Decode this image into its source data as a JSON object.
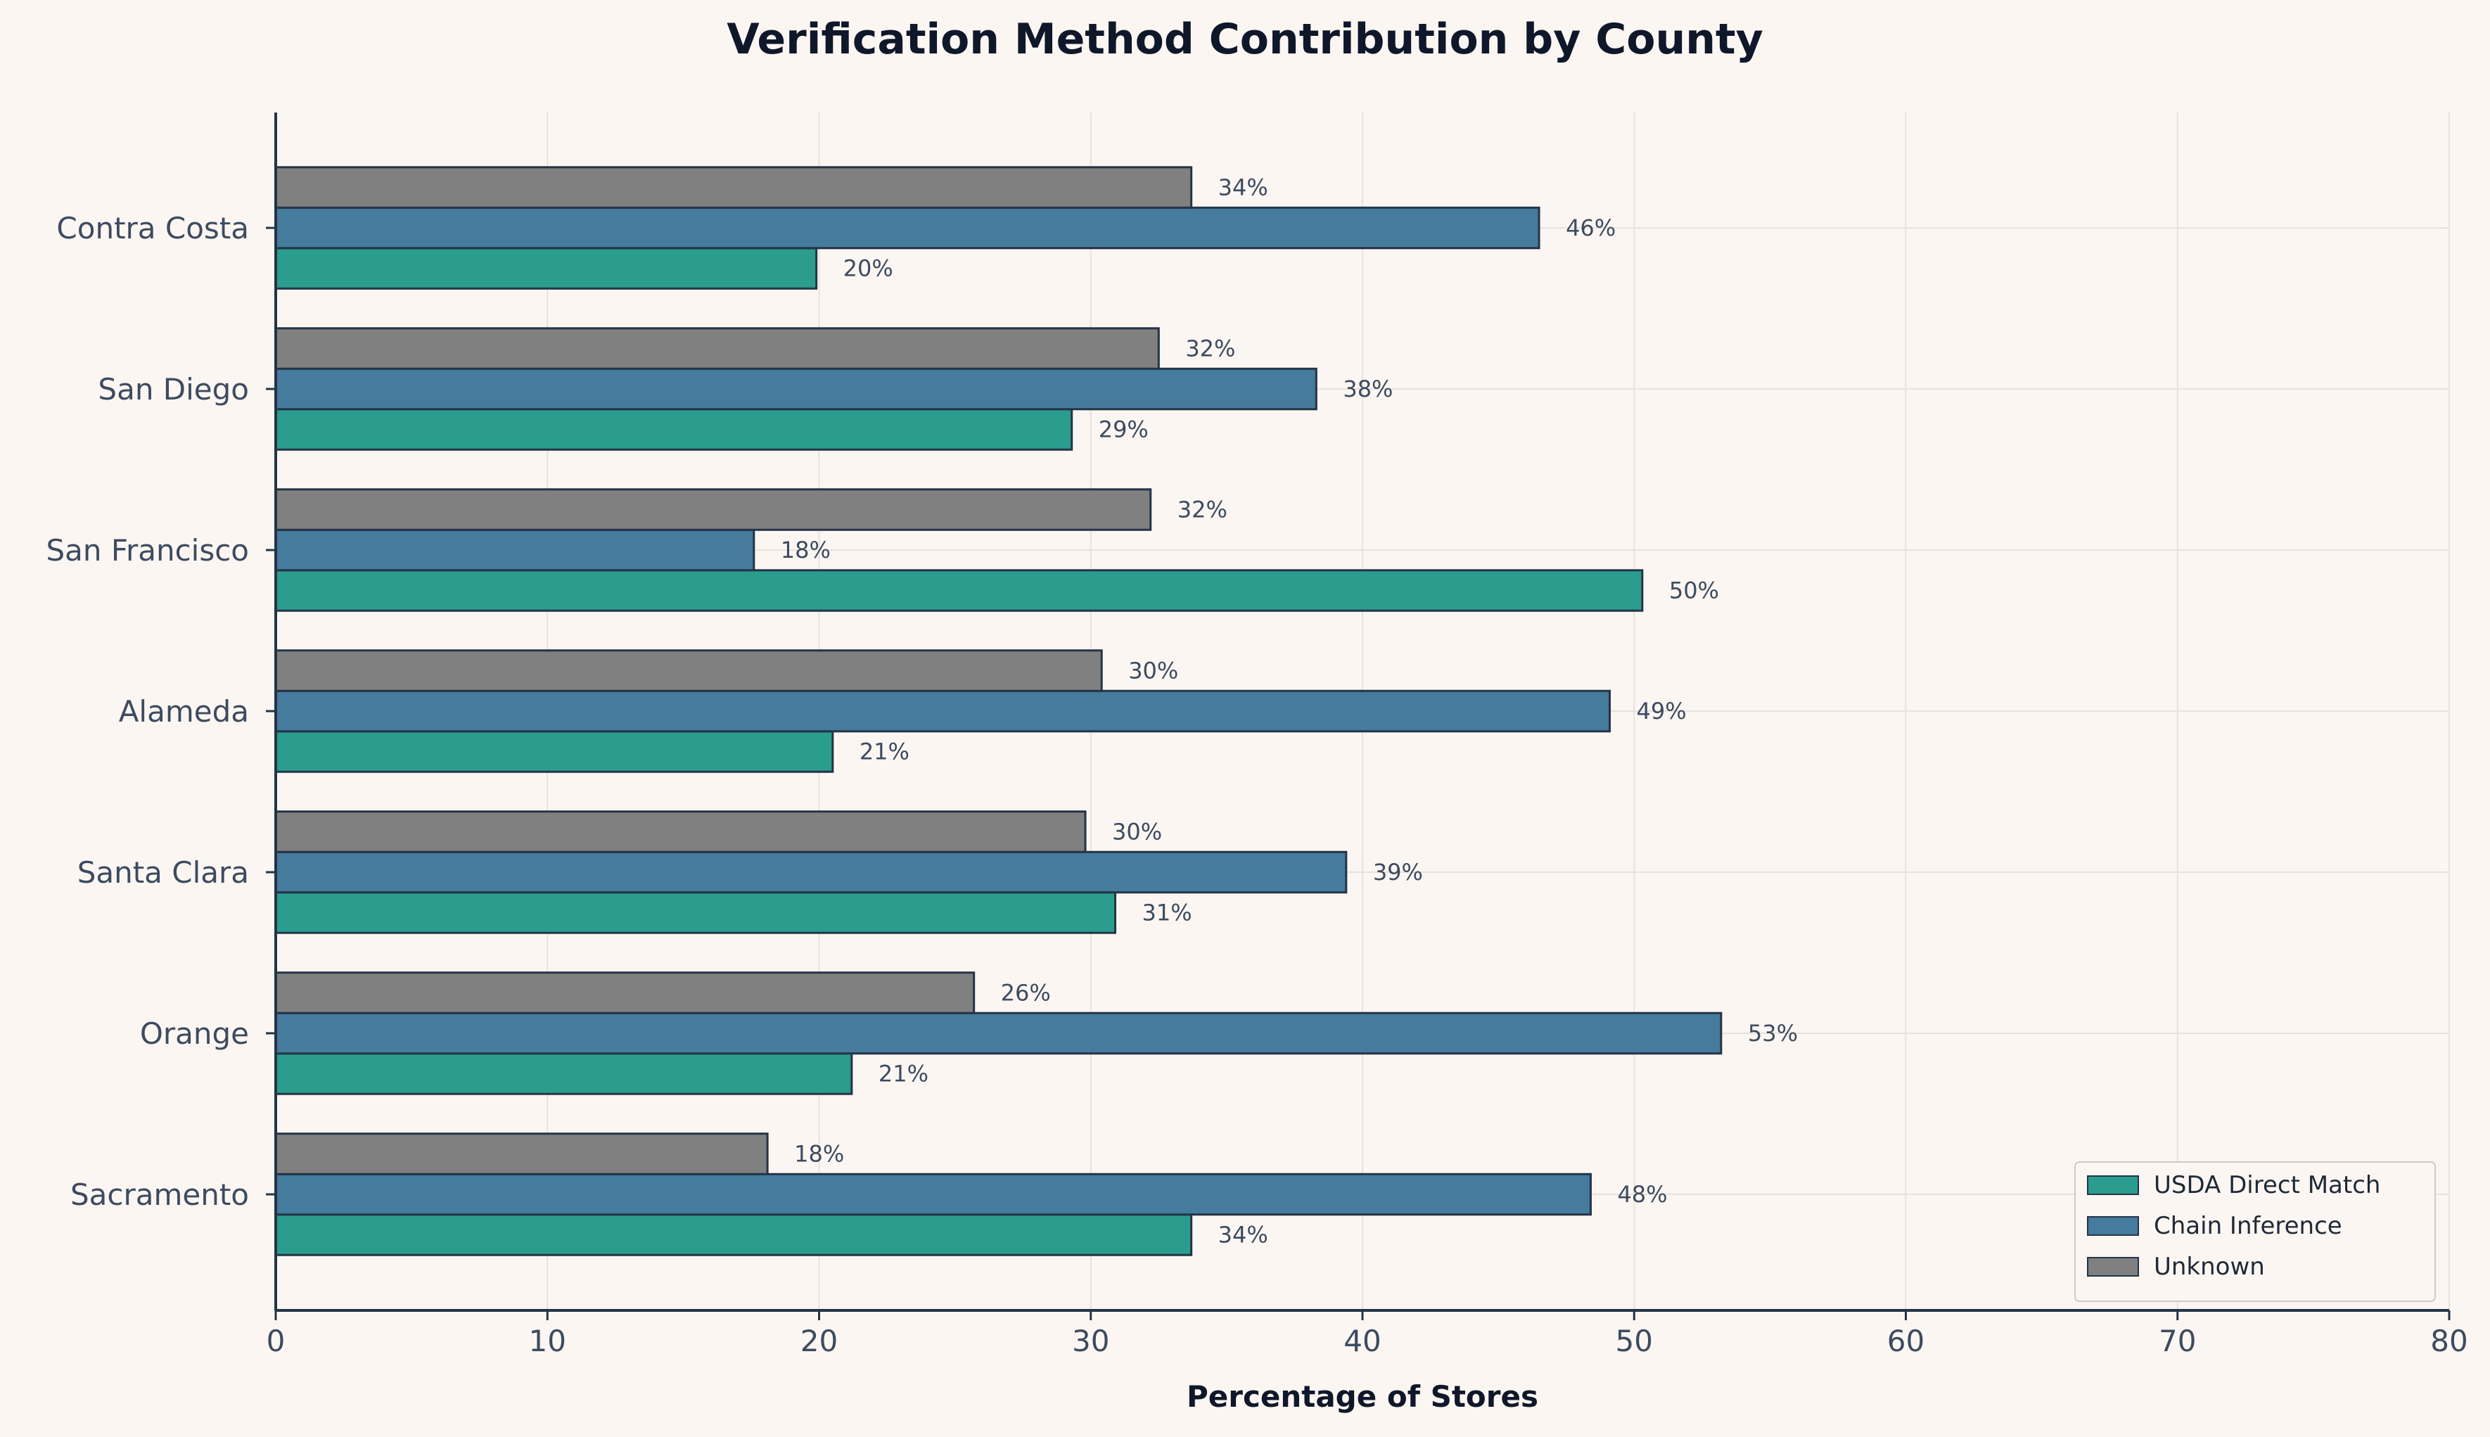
{
  "chart_data": {
    "type": "bar",
    "orientation": "horizontal",
    "title": "Verification Method Contribution by County",
    "xlabel": "Percentage of Stores",
    "ylabel": "",
    "xlim": [
      0,
      80
    ],
    "xticks": [
      0,
      10,
      20,
      30,
      40,
      50,
      60,
      70,
      80
    ],
    "grid": true,
    "legend_position": "bottom-right",
    "categories": [
      "Contra Costa",
      "San Diego",
      "San Francisco",
      "Alameda",
      "Santa Clara",
      "Orange",
      "Sacramento"
    ],
    "series": [
      {
        "name": "USDA Direct Match",
        "color": "#2a9d8f",
        "values": [
          19.9,
          29.3,
          50.3,
          20.5,
          30.9,
          21.2,
          33.7
        ],
        "labels": [
          "20%",
          "29%",
          "50%",
          "21%",
          "31%",
          "21%",
          "34%"
        ]
      },
      {
        "name": "Chain Inference",
        "color": "#457b9d",
        "values": [
          46.5,
          38.3,
          17.6,
          49.1,
          39.4,
          53.2,
          48.4
        ],
        "labels": [
          "46%",
          "38%",
          "18%",
          "49%",
          "39%",
          "53%",
          "48%"
        ]
      },
      {
        "name": "Unknown",
        "color": "#808080",
        "values": [
          33.7,
          32.5,
          32.2,
          30.4,
          29.8,
          25.7,
          18.1
        ],
        "labels": [
          "34%",
          "32%",
          "32%",
          "30%",
          "30%",
          "26%",
          "18%"
        ]
      }
    ]
  }
}
